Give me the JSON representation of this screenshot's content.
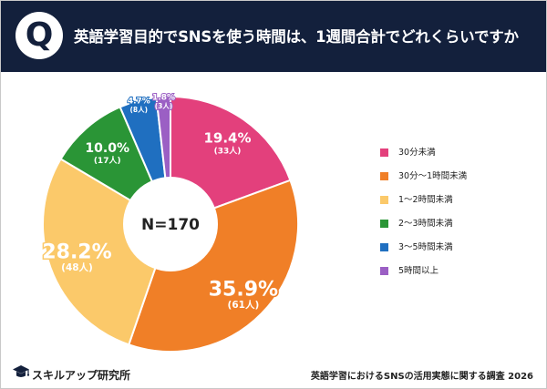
{
  "header": {
    "badge": "Q",
    "title": "英語学習目的でSNSを使う時間は、1週間合計でどれくらいですか"
  },
  "chart_data": {
    "type": "pie",
    "center_label": "N=170",
    "slices": [
      {
        "label": "30分未満",
        "percent": "19.4%",
        "count": "(33人)",
        "value": 33,
        "color": "#e3407c"
      },
      {
        "label": "30分〜1時間未満",
        "percent": "35.9%",
        "count": "(61人)",
        "value": 61,
        "color": "#f07f27"
      },
      {
        "label": "1〜2時間未満",
        "percent": "28.2%",
        "count": "(48人)",
        "value": 48,
        "color": "#fbc96a"
      },
      {
        "label": "2〜3時間未満",
        "percent": "10.0%",
        "count": "(17人)",
        "value": 17,
        "color": "#2a9536"
      },
      {
        "label": "3〜5時間未満",
        "percent": "4.7%",
        "count": "(8人)",
        "value": 8,
        "color": "#1f6fc0"
      },
      {
        "label": "5時間以上",
        "percent": "1.8%",
        "count": "(3人)",
        "value": 3,
        "color": "#9b5fc4"
      }
    ]
  },
  "footer": {
    "logo_text": "スキルアップ研究所",
    "source": "英語学習におけるSNSの活用実態に関する調査 2026"
  }
}
